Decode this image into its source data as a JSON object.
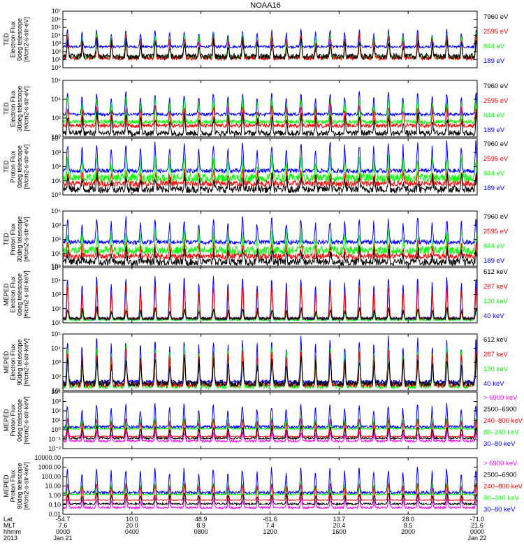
{
  "title": "NOAA16",
  "colors": {
    "black": "#000000",
    "red": "#ff0000",
    "green": "#00ff00",
    "blue": "#0000ff",
    "magenta": "#ff00ff"
  },
  "chart_data": [
    {
      "type": "line",
      "ylabel_lines": [
        "TED",
        "Electron Flux",
        "0deg telescope",
        "[#/cm2-s-str-eV]"
      ],
      "y_scale": "log",
      "ylim": [
        1,
        10000000
      ],
      "ytick_labels": [
        "10⁰",
        "10¹",
        "10²",
        "10³",
        "10⁴",
        "10⁵",
        "10⁶",
        "10⁷"
      ],
      "series": [
        {
          "name": "7960 eV",
          "color": "#000000",
          "base": 1.4,
          "peak": 3.2,
          "noise": 0.7
        },
        {
          "name": "2595 eV",
          "color": "#ff0000",
          "base": 1.2,
          "peak": 3.8,
          "noise": 0.5
        },
        {
          "name": "844 eV",
          "color": "#00ff00",
          "base": 1.3,
          "peak": 4.2,
          "noise": 0.4
        },
        {
          "name": "189 eV",
          "color": "#0000ff",
          "base": 2.6,
          "peak": 4.6,
          "noise": 0.3
        }
      ]
    },
    {
      "type": "line",
      "ylabel_lines": [
        "TED",
        "Electron Flux",
        "30deg telescope",
        "[#/cm2-s-str-eV]"
      ],
      "y_scale": "log",
      "ylim": [
        1,
        1000000
      ],
      "ytick_labels": [
        "10⁰",
        "10²",
        "10⁴",
        "10⁶"
      ],
      "series": [
        {
          "name": "7960 eV",
          "color": "#000000",
          "base": 0.4,
          "peak": 2.2,
          "noise": 0.6
        },
        {
          "name": "2595 eV",
          "color": "#ff0000",
          "base": 1.2,
          "peak": 3.2,
          "noise": 0.4
        },
        {
          "name": "844 eV",
          "color": "#00ff00",
          "base": 1.6,
          "peak": 4.0,
          "noise": 0.4
        },
        {
          "name": "189 eV",
          "color": "#0000ff",
          "base": 2.4,
          "peak": 4.6,
          "noise": 0.3
        }
      ]
    },
    {
      "type": "line",
      "ylabel_lines": [
        "TED",
        "Proton Flux",
        "0deg telescope",
        "[#/cm2-s-str-eV]"
      ],
      "y_scale": "log",
      "ylim": [
        1,
        10000
      ],
      "ytick_labels": [
        "10⁰",
        "10¹",
        "10²",
        "10³",
        "10⁴"
      ],
      "series": [
        {
          "name": "7960 eV",
          "color": "#000000",
          "base": 0.4,
          "peak": 1.2,
          "noise": 0.5
        },
        {
          "name": "2595 eV",
          "color": "#ff0000",
          "base": 0.8,
          "peak": 1.6,
          "noise": 0.4
        },
        {
          "name": "844 eV",
          "color": "#00ff00",
          "base": 1.2,
          "peak": 2.4,
          "noise": 0.6
        },
        {
          "name": "189 eV",
          "color": "#0000ff",
          "base": 1.7,
          "peak": 3.6,
          "noise": 0.3
        }
      ]
    },
    {
      "type": "line",
      "ylabel_lines": [
        "TED",
        "Proton Flux",
        "30deg telescope",
        "[#/cm2-s-str-eV]"
      ],
      "y_scale": "log",
      "ylim": [
        1,
        10000
      ],
      "ytick_labels": [
        "10⁰",
        "10¹",
        "10²",
        "10³",
        "10⁴"
      ],
      "series": [
        {
          "name": "7960 eV",
          "color": "#000000",
          "base": 0.4,
          "peak": 1.1,
          "noise": 0.5
        },
        {
          "name": "2595 eV",
          "color": "#ff0000",
          "base": 0.8,
          "peak": 1.6,
          "noise": 0.4
        },
        {
          "name": "844 eV",
          "color": "#00ff00",
          "base": 1.2,
          "peak": 2.3,
          "noise": 0.6
        },
        {
          "name": "189 eV",
          "color": "#0000ff",
          "base": 1.8,
          "peak": 3.4,
          "noise": 0.3
        }
      ]
    },
    {
      "type": "line",
      "ylabel_lines": [
        "MEPED",
        "Electron Flux",
        "0deg telescope",
        "[#/cm2-s-str-keV]"
      ],
      "y_scale": "log",
      "ylim": [
        10,
        100000
      ],
      "ytick_labels": [
        "10¹",
        "10²",
        "10³",
        "10⁴",
        "10⁵"
      ],
      "series": [
        {
          "name": "612 keV",
          "color": "#000000",
          "base": 1.3,
          "peak": 2.0,
          "noise": 0.2
        },
        {
          "name": "287 keV",
          "color": "#ff0000",
          "base": 1.3,
          "peak": 3.6,
          "noise": 0.1
        },
        {
          "name": "130 keV",
          "color": "#00ff00",
          "base": 1.2,
          "peak": 2.0,
          "noise": 0.1
        },
        {
          "name": "40 keV",
          "color": "#0000ff",
          "base": 1.3,
          "peak": 4.2,
          "noise": 0.2
        }
      ]
    },
    {
      "type": "line",
      "ylabel_lines": [
        "MEPED",
        "Electron Flux",
        "90deg telescope",
        "[#/cm2-s-str-keV]"
      ],
      "y_scale": "log",
      "ylim": [
        10,
        100000
      ],
      "ytick_labels": [
        "10¹",
        "10²",
        "10³",
        "10⁴",
        "10⁵"
      ],
      "series": [
        {
          "name": "612 keV",
          "color": "#000000",
          "base": 1.5,
          "peak": 3.2,
          "noise": 0.4
        },
        {
          "name": "287 keV",
          "color": "#ff0000",
          "base": 1.4,
          "peak": 3.8,
          "noise": 0.3
        },
        {
          "name": "130 keV",
          "color": "#00ff00",
          "base": 1.3,
          "peak": 4.0,
          "noise": 0.3
        },
        {
          "name": "40 keV",
          "color": "#0000ff",
          "base": 1.6,
          "peak": 4.6,
          "noise": 0.3
        }
      ]
    },
    {
      "type": "line",
      "ylabel_lines": [
        "MEPED",
        "Proton Flux",
        "0deg telescope",
        "[#/cm2-s-str-keV]"
      ],
      "y_scale": "log",
      "ylim": [
        0.01,
        10000
      ],
      "ytick_labels": [
        "10⁻²",
        "10⁻¹",
        "10⁰",
        "10¹",
        "10²",
        "10³",
        "10⁴"
      ],
      "series": [
        {
          "name": "> 6900 keV",
          "color": "#ff00ff",
          "base": -1.2,
          "peak": -0.3,
          "noise": 0.2
        },
        {
          "name": "2500–6900",
          "color": "#000000",
          "base": -0.9,
          "peak": 0.3,
          "noise": 0.2
        },
        {
          "name": "240–800 keV",
          "color": "#ff0000",
          "base": -0.7,
          "peak": 1.1,
          "noise": 0.1
        },
        {
          "name": "80–240 keV",
          "color": "#00ff00",
          "base": 0.1,
          "peak": 1.2,
          "noise": 0.1
        },
        {
          "name": "30–80 keV",
          "color": "#0000ff",
          "base": 0.3,
          "peak": 2.6,
          "noise": 0.3
        }
      ]
    },
    {
      "type": "line",
      "ylabel_lines": [
        "MEPED",
        "Proton Flux",
        "90deg telescope",
        "[#/cm2-s-str-keV]"
      ],
      "y_scale": "log",
      "ylim": [
        0.01,
        10000
      ],
      "ytick_labels": [
        "0.01",
        "0.10",
        "1.00",
        "10.00",
        "100.00",
        "1000.00",
        "10000.00"
      ],
      "series": [
        {
          "name": "> 6900 keV",
          "color": "#ff00ff",
          "base": -1.3,
          "peak": -0.4,
          "noise": 0.2
        },
        {
          "name": "2500–6900",
          "color": "#000000",
          "base": -0.9,
          "peak": 0.2,
          "noise": 0.2
        },
        {
          "name": "240–800 keV",
          "color": "#ff0000",
          "base": -0.5,
          "peak": 1.2,
          "noise": 0.1
        },
        {
          "name": "80–240 keV",
          "color": "#00ff00",
          "base": 0.1,
          "peak": 1.3,
          "noise": 0.1
        },
        {
          "name": "30–80 keV",
          "color": "#0000ff",
          "base": 0.3,
          "peak": 2.8,
          "noise": 0.3
        }
      ]
    }
  ],
  "x_axis": {
    "row_labels": [
      "Lat",
      "MLT",
      "hhmm",
      "2013"
    ],
    "ticks": [
      {
        "lat": "-54.7",
        "mlt": "7.6",
        "hhmm": "0000",
        "date": "Jan 21"
      },
      {
        "lat": "10.0",
        "mlt": "20.0",
        "hhmm": "0400",
        "date": ""
      },
      {
        "lat": "48.9",
        "mlt": "8.9",
        "hhmm": "0800",
        "date": ""
      },
      {
        "lat": "-61.6",
        "mlt": "7.4",
        "hhmm": "1200",
        "date": ""
      },
      {
        "lat": "13.7",
        "mlt": "20.4",
        "hhmm": "1600",
        "date": ""
      },
      {
        "lat": "28.0",
        "mlt": "8.5",
        "hhmm": "2000",
        "date": ""
      },
      {
        "lat": "-71.0",
        "mlt": "21.6",
        "hhmm": "0000",
        "date": "Jan 22"
      }
    ]
  }
}
